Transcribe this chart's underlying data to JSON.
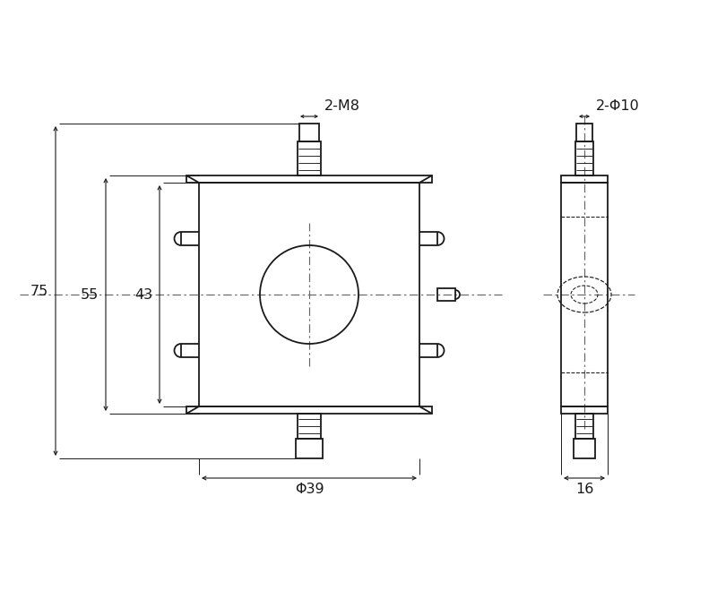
{
  "bg_color": "#ffffff",
  "line_color": "#1a1a1a",
  "dash_color": "#666666",
  "fig_width": 8.0,
  "fig_height": 6.59,
  "dpi": 100,
  "annotations": {
    "2_M8": "2-M8",
    "2_phi10": "2-Φ10",
    "phi39": "Φ39",
    "dim75": "75",
    "dim55": "55",
    "dim43": "43",
    "dim16": "16"
  }
}
